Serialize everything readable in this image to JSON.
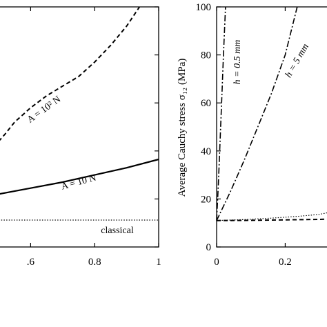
{
  "chart_data": [
    {
      "type": "line",
      "panel": "left",
      "xlim": [
        0.5,
        1.0
      ],
      "ylim": [
        0,
        100
      ],
      "x_ticks": [
        {
          "value": 0.6,
          "label": ".6"
        },
        {
          "value": 0.8,
          "label": "0.8"
        },
        {
          "value": 1.0,
          "label": "1"
        }
      ],
      "xlabel": "",
      "ylabel": "",
      "grid": false,
      "series": [
        {
          "label": "A = 10² N",
          "style": "dashed",
          "x": [
            0.5,
            0.52,
            0.55,
            0.6,
            0.65,
            0.7,
            0.75,
            0.8,
            0.85,
            0.9,
            0.94
          ],
          "y": [
            44,
            47,
            52,
            58,
            63,
            67,
            71,
            77,
            84,
            92,
            100
          ]
        },
        {
          "label": "A = 10 N",
          "style": "solid",
          "x": [
            0.5,
            0.6,
            0.7,
            0.8,
            0.9,
            1.0
          ],
          "y": [
            22.0,
            24.5,
            27.0,
            30.0,
            33.0,
            36.5
          ]
        },
        {
          "label": "classical",
          "style": "dotted",
          "x": [
            0.5,
            1.0
          ],
          "y": [
            11.2,
            11.2
          ]
        }
      ],
      "annotations": [
        {
          "text": "A = 10² N",
          "series": "A = 10² N"
        },
        {
          "text": "A = 10 N",
          "series": "A = 10 N"
        },
        {
          "text": "classical",
          "series": "classical"
        }
      ]
    },
    {
      "type": "line",
      "panel": "right",
      "xlim": [
        0,
        0.35
      ],
      "ylim": [
        0,
        100
      ],
      "x_ticks": [
        {
          "value": 0,
          "label": "0"
        },
        {
          "value": 0.2,
          "label": "0.2"
        }
      ],
      "y_ticks": [
        0,
        20,
        40,
        60,
        80,
        100
      ],
      "xlabel": "",
      "ylabel": "Average Cauchy stress σ₁₂ (MPa)",
      "grid": false,
      "series": [
        {
          "label": "h = 0.5 mm",
          "style": "dashdot",
          "x": [
            0,
            0.005,
            0.01,
            0.015,
            0.02,
            0.026
          ],
          "y": [
            11,
            26,
            44,
            62,
            80,
            100
          ]
        },
        {
          "label": "h = 5 mm",
          "style": "dashdot",
          "x": [
            0,
            0.04,
            0.08,
            0.12,
            0.16,
            0.2,
            0.235
          ],
          "y": [
            11,
            23,
            36,
            50,
            64,
            80,
            100
          ]
        },
        {
          "label": "",
          "style": "dotted",
          "x": [
            0,
            0.08,
            0.16,
            0.24,
            0.3,
            0.35
          ],
          "y": [
            11,
            11.4,
            12,
            12.8,
            13.6,
            15
          ]
        },
        {
          "label": "",
          "style": "dashed",
          "x": [
            0,
            0.1,
            0.2,
            0.3,
            0.35
          ],
          "y": [
            11,
            11.1,
            11.3,
            11.5,
            11.7
          ]
        }
      ],
      "annotations": [
        {
          "text": "h = 0.5 mm",
          "series": "h = 0.5 mm"
        },
        {
          "text": "h = 5 mm",
          "series": "h = 5 mm"
        }
      ]
    }
  ]
}
